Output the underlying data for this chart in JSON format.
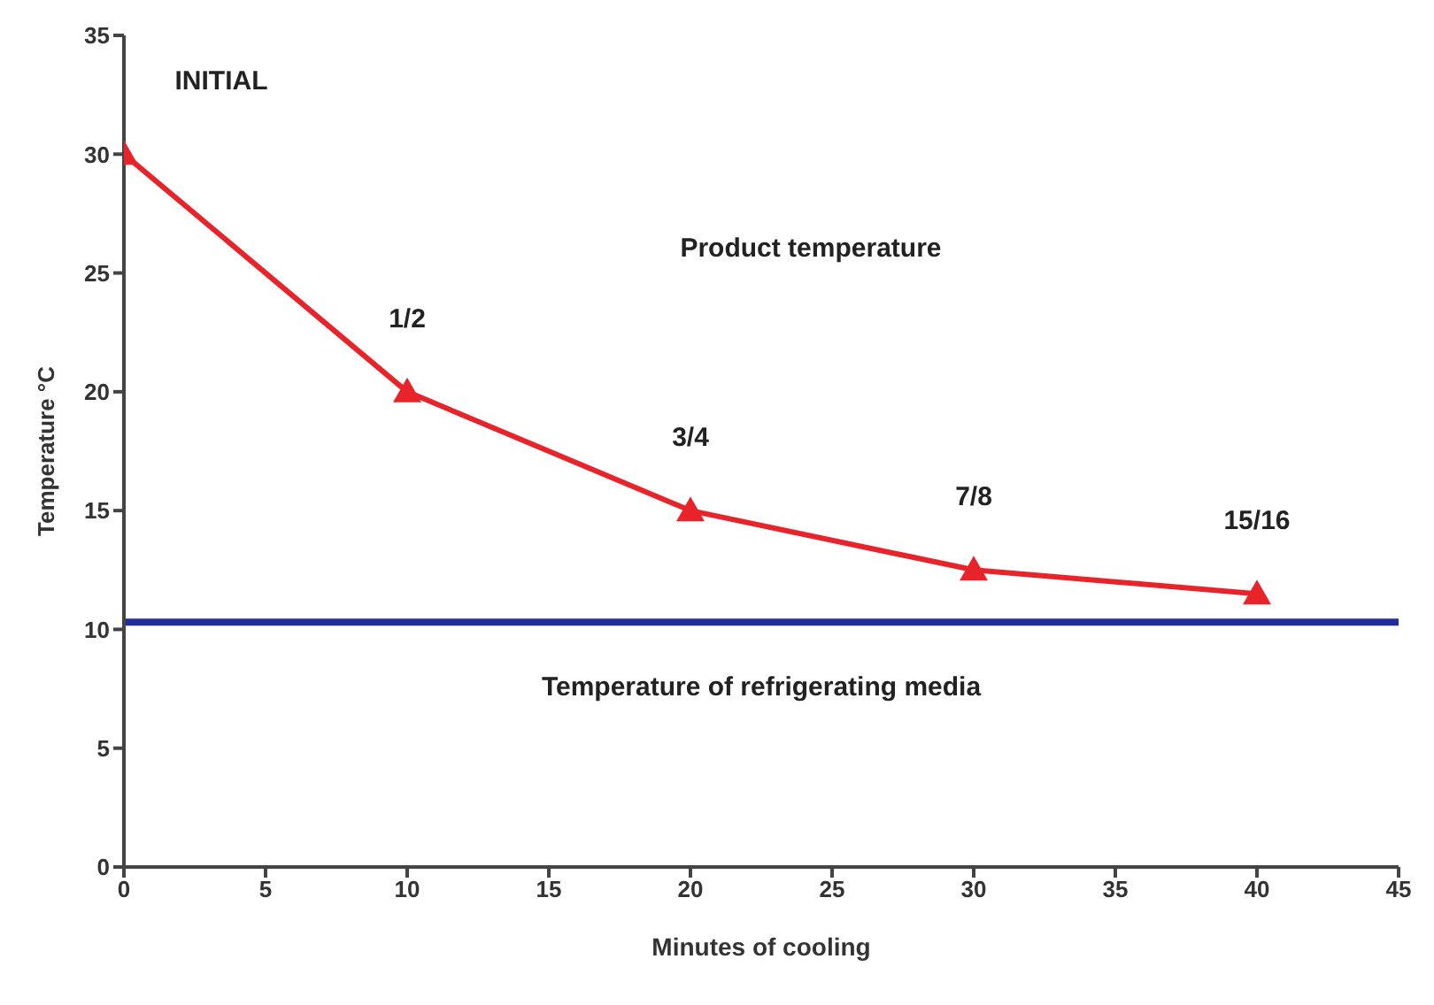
{
  "chart_data": {
    "type": "line",
    "xlabel": "Minutes of cooling",
    "ylabel": "Temperature °C",
    "x": [
      0,
      10,
      20,
      30,
      40
    ],
    "series": [
      {
        "color": "#e8232a",
        "values": [
          30,
          20,
          15,
          12.5,
          11.5
        ],
        "marker": "triangle"
      }
    ],
    "ref_lines": [
      {
        "axis": "y",
        "value": 10.3,
        "label": "Temperature of refrigerating media",
        "color": "#1f2e9c"
      }
    ],
    "annotations": [
      "Product temperature",
      {
        "text": "INITIAL",
        "x": 0,
        "y": 30
      },
      {
        "text": "1/2",
        "x": 10,
        "y": 20
      },
      {
        "text": "3/4",
        "x": 20,
        "y": 15
      },
      {
        "text": "7/8",
        "x": 30,
        "y": 12.5
      },
      {
        "text": "15/16",
        "x": 40,
        "y": 11.5
      }
    ],
    "xlim": [
      0,
      45
    ],
    "xticks": [
      0,
      5,
      10,
      15,
      20,
      25,
      30,
      35,
      40,
      45
    ],
    "ylim": [
      0,
      35
    ],
    "yticks": [
      0,
      5,
      10,
      15,
      20,
      25,
      30,
      35
    ],
    "line_style": "solid"
  }
}
